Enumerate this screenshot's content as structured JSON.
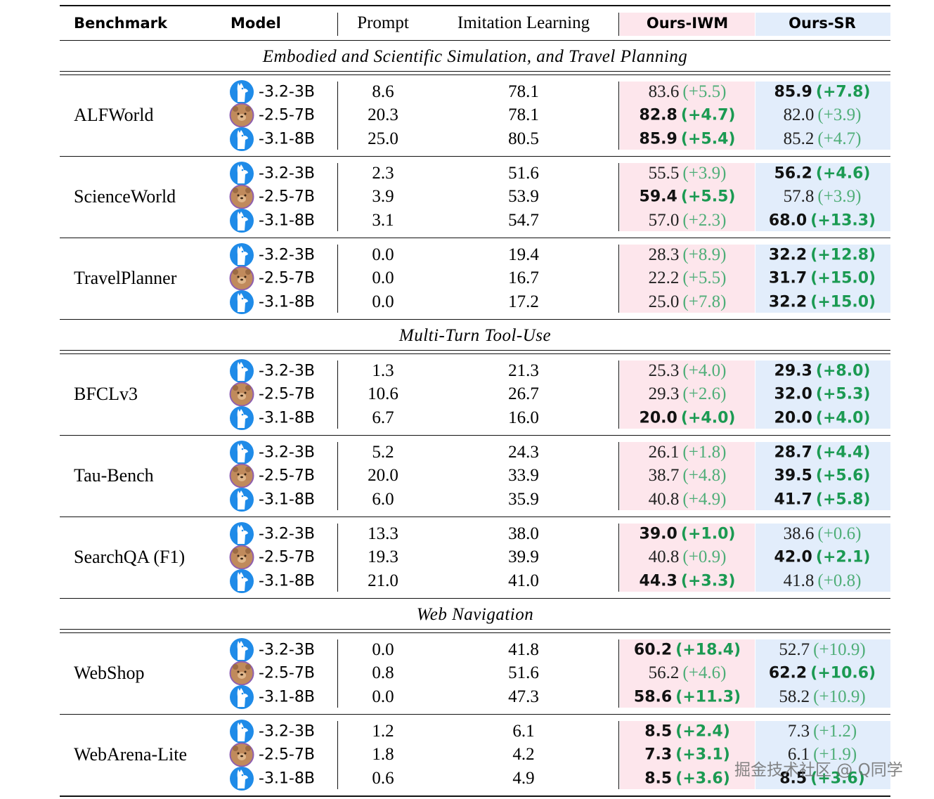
{
  "header": {
    "benchmark": "Benchmark",
    "model": "Model",
    "prompt": "Prompt",
    "imitation": "Imitation Learning",
    "iwm": "Ours-IWM",
    "sr": "Ours-SR"
  },
  "sections": [
    {
      "title": "Embodied and Scientific Simulation, and Travel Planning",
      "groups": [
        {
          "benchmark": "ALFWorld",
          "rows": [
            {
              "model": "-3.2-3B",
              "prompt": "8.6",
              "imitation": "78.1",
              "iwm": {
                "value": "83.6",
                "gain": "(+5.5)",
                "best": false
              },
              "sr": {
                "value": "85.9",
                "gain": "(+7.8)",
                "best": true
              }
            },
            {
              "model": "-2.5-7B",
              "prompt": "20.3",
              "imitation": "78.1",
              "iwm": {
                "value": "82.8",
                "gain": "(+4.7)",
                "best": true
              },
              "sr": {
                "value": "82.0",
                "gain": "(+3.9)",
                "best": false
              }
            },
            {
              "model": "-3.1-8B",
              "prompt": "25.0",
              "imitation": "80.5",
              "iwm": {
                "value": "85.9",
                "gain": "(+5.4)",
                "best": true
              },
              "sr": {
                "value": "85.2",
                "gain": "(+4.7)",
                "best": false
              }
            }
          ]
        },
        {
          "benchmark": "ScienceWorld",
          "rows": [
            {
              "model": "-3.2-3B",
              "prompt": "2.3",
              "imitation": "51.6",
              "iwm": {
                "value": "55.5",
                "gain": "(+3.9)",
                "best": false
              },
              "sr": {
                "value": "56.2",
                "gain": "(+4.6)",
                "best": true
              }
            },
            {
              "model": "-2.5-7B",
              "prompt": "3.9",
              "imitation": "53.9",
              "iwm": {
                "value": "59.4",
                "gain": "(+5.5)",
                "best": true
              },
              "sr": {
                "value": "57.8",
                "gain": "(+3.9)",
                "best": false
              }
            },
            {
              "model": "-3.1-8B",
              "prompt": "3.1",
              "imitation": "54.7",
              "iwm": {
                "value": "57.0",
                "gain": "(+2.3)",
                "best": false
              },
              "sr": {
                "value": "68.0",
                "gain": "(+13.3)",
                "best": true
              }
            }
          ]
        },
        {
          "benchmark": "TravelPlanner",
          "rows": [
            {
              "model": "-3.2-3B",
              "prompt": "0.0",
              "imitation": "19.4",
              "iwm": {
                "value": "28.3",
                "gain": "(+8.9)",
                "best": false
              },
              "sr": {
                "value": "32.2",
                "gain": "(+12.8)",
                "best": true
              }
            },
            {
              "model": "-2.5-7B",
              "prompt": "0.0",
              "imitation": "16.7",
              "iwm": {
                "value": "22.2",
                "gain": "(+5.5)",
                "best": false
              },
              "sr": {
                "value": "31.7",
                "gain": "(+15.0)",
                "best": true
              }
            },
            {
              "model": "-3.1-8B",
              "prompt": "0.0",
              "imitation": "17.2",
              "iwm": {
                "value": "25.0",
                "gain": "(+7.8)",
                "best": false
              },
              "sr": {
                "value": "32.2",
                "gain": "(+15.0)",
                "best": true
              }
            }
          ]
        }
      ]
    },
    {
      "title": "Multi-Turn Tool-Use",
      "groups": [
        {
          "benchmark": "BFCLv3",
          "rows": [
            {
              "model": "-3.2-3B",
              "prompt": "1.3",
              "imitation": "21.3",
              "iwm": {
                "value": "25.3",
                "gain": "(+4.0)",
                "best": false
              },
              "sr": {
                "value": "29.3",
                "gain": "(+8.0)",
                "best": true
              }
            },
            {
              "model": "-2.5-7B",
              "prompt": "10.6",
              "imitation": "26.7",
              "iwm": {
                "value": "29.3",
                "gain": "(+2.6)",
                "best": false
              },
              "sr": {
                "value": "32.0",
                "gain": "(+5.3)",
                "best": true
              }
            },
            {
              "model": "-3.1-8B",
              "prompt": "6.7",
              "imitation": "16.0",
              "iwm": {
                "value": "20.0",
                "gain": "(+4.0)",
                "best": true
              },
              "sr": {
                "value": "20.0",
                "gain": "(+4.0)",
                "best": true
              }
            }
          ]
        },
        {
          "benchmark": "Tau-Bench",
          "rows": [
            {
              "model": "-3.2-3B",
              "prompt": "5.2",
              "imitation": "24.3",
              "iwm": {
                "value": "26.1",
                "gain": "(+1.8)",
                "best": false
              },
              "sr": {
                "value": "28.7",
                "gain": "(+4.4)",
                "best": true
              }
            },
            {
              "model": "-2.5-7B",
              "prompt": "20.0",
              "imitation": "33.9",
              "iwm": {
                "value": "38.7",
                "gain": "(+4.8)",
                "best": false
              },
              "sr": {
                "value": "39.5",
                "gain": "(+5.6)",
                "best": true
              }
            },
            {
              "model": "-3.1-8B",
              "prompt": "6.0",
              "imitation": "35.9",
              "iwm": {
                "value": "40.8",
                "gain": "(+4.9)",
                "best": false
              },
              "sr": {
                "value": "41.7",
                "gain": "(+5.8)",
                "best": true
              }
            }
          ]
        },
        {
          "benchmark": "SearchQA (F1)",
          "rows": [
            {
              "model": "-3.2-3B",
              "prompt": "13.3",
              "imitation": "38.0",
              "iwm": {
                "value": "39.0",
                "gain": "(+1.0)",
                "best": true
              },
              "sr": {
                "value": "38.6",
                "gain": "(+0.6)",
                "best": false
              }
            },
            {
              "model": "-2.5-7B",
              "prompt": "19.3",
              "imitation": "39.9",
              "iwm": {
                "value": "40.8",
                "gain": "(+0.9)",
                "best": false
              },
              "sr": {
                "value": "42.0",
                "gain": "(+2.1)",
                "best": true
              }
            },
            {
              "model": "-3.1-8B",
              "prompt": "21.0",
              "imitation": "41.0",
              "iwm": {
                "value": "44.3",
                "gain": "(+3.3)",
                "best": true
              },
              "sr": {
                "value": "41.8",
                "gain": "(+0.8)",
                "best": false
              }
            }
          ]
        }
      ]
    },
    {
      "title": "Web Navigation",
      "groups": [
        {
          "benchmark": "WebShop",
          "rows": [
            {
              "model": "-3.2-3B",
              "prompt": "0.0",
              "imitation": "41.8",
              "iwm": {
                "value": "60.2",
                "gain": "(+18.4)",
                "best": true
              },
              "sr": {
                "value": "52.7",
                "gain": "(+10.9)",
                "best": false
              }
            },
            {
              "model": "-2.5-7B",
              "prompt": "0.8",
              "imitation": "51.6",
              "iwm": {
                "value": "56.2",
                "gain": "(+4.6)",
                "best": false
              },
              "sr": {
                "value": "62.2",
                "gain": "(+10.6)",
                "best": true
              }
            },
            {
              "model": "-3.1-8B",
              "prompt": "0.0",
              "imitation": "47.3",
              "iwm": {
                "value": "58.6",
                "gain": "(+11.3)",
                "best": true
              },
              "sr": {
                "value": "58.2",
                "gain": "(+10.9)",
                "best": false
              }
            }
          ]
        },
        {
          "benchmark": "WebArena-Lite",
          "rows": [
            {
              "model": "-3.2-3B",
              "prompt": "1.2",
              "imitation": "6.1",
              "iwm": {
                "value": "8.5",
                "gain": "(+2.4)",
                "best": true
              },
              "sr": {
                "value": "7.3",
                "gain": "(+1.2)",
                "best": false
              }
            },
            {
              "model": "-2.5-7B",
              "prompt": "1.8",
              "imitation": "4.2",
              "iwm": {
                "value": "7.3",
                "gain": "(+3.1)",
                "best": true
              },
              "sr": {
                "value": "6.1",
                "gain": "(+1.9)",
                "best": false
              }
            },
            {
              "model": "-3.1-8B",
              "prompt": "0.6",
              "imitation": "4.9",
              "iwm": {
                "value": "8.5",
                "gain": "(+3.6)",
                "best": true
              },
              "sr": {
                "value": "8.5",
                "gain": "(+3.6)",
                "best": true
              }
            }
          ]
        }
      ]
    }
  ],
  "watermark": "掘金技术社区 @ Q同学"
}
